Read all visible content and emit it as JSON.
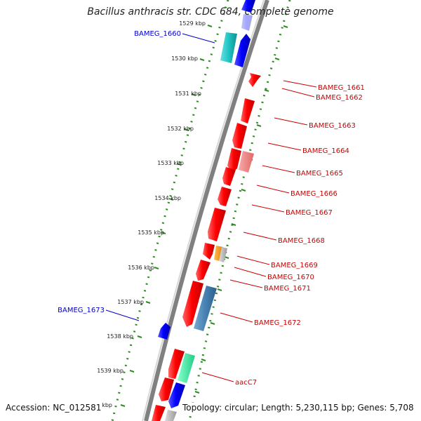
{
  "title": "Bacillus anthracis str. CDC 684, complete genome",
  "footer": {
    "accession": "Accession: NC_012581",
    "topology": "Topology: circular; Length: 5,230,115 bp; Genes: 5,708"
  },
  "colors": {
    "forward_gene": "#1a1aff",
    "reverse_gene": "#ff1a1a",
    "reverse_pseudo": "#f08080",
    "cyan_feature": "#22c7c7",
    "steelblue_feature": "#4682b4",
    "orange_feature": "#ff9900",
    "grey_feature": "#b0b0b0",
    "green_feature": "#33ee99",
    "ticks": "#2e8b22",
    "backbone": "#808080",
    "left_label": "#0000cc",
    "right_label": "#cc0000"
  },
  "scale_ticks": [
    "1529 kbp",
    "1530 kbp",
    "1531 kbp",
    "1532 kbp",
    "1533 kbp",
    "1534 kbp",
    "1535 kbp",
    "1536 kbp",
    "1537 kbp",
    "1538 kbp",
    "1539 kbp",
    "1540 kbp"
  ],
  "left_labels": [
    "BAMEG_1660",
    "BAMEG_1673"
  ],
  "right_labels": [
    "BAMEG_1661",
    "BAMEG_1662",
    "BAMEG_1663",
    "BAMEG_1664",
    "BAMEG_1665",
    "BAMEG_1666",
    "BAMEG_1667",
    "BAMEG_1668",
    "BAMEG_1669",
    "BAMEG_1670",
    "BAMEG_1671",
    "BAMEG_1672",
    "aacC7"
  ]
}
